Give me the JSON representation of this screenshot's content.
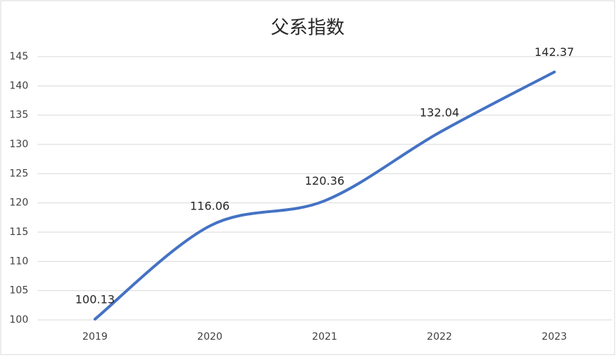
{
  "chart_data": {
    "type": "line",
    "title": "父系指数",
    "categories": [
      "2019",
      "2020",
      "2021",
      "2022",
      "2023"
    ],
    "values": [
      100.13,
      116.06,
      120.36,
      132.04,
      142.37
    ],
    "color": "#4472c4",
    "ylim": [
      100,
      145
    ],
    "yticks": [
      100,
      105,
      110,
      115,
      120,
      125,
      130,
      135,
      140,
      145
    ],
    "grid": true,
    "smooth": true
  }
}
